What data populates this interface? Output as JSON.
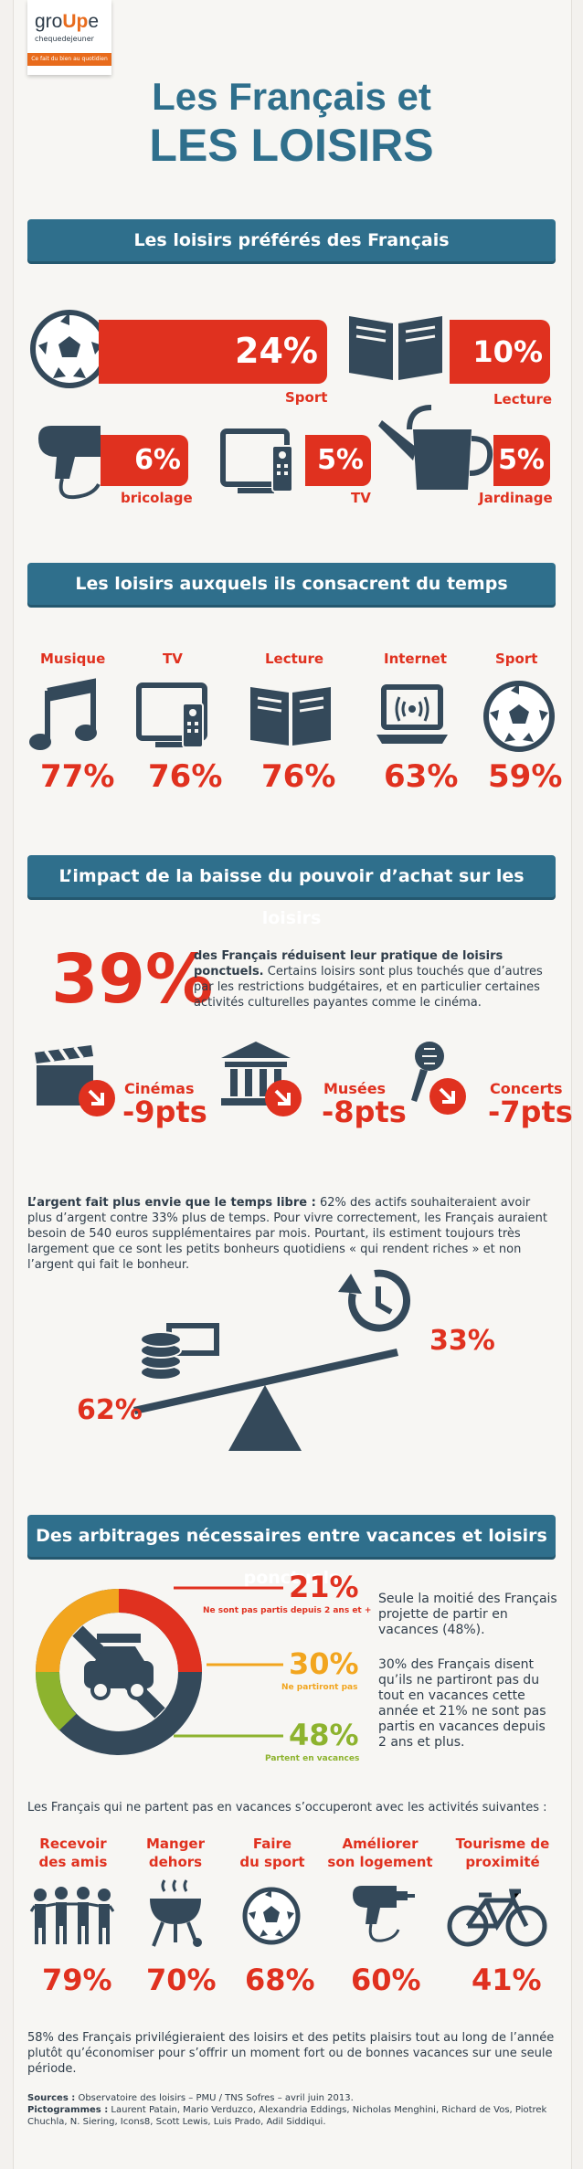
{
  "brand": {
    "name_a": "gro",
    "name_b": "Up",
    "name_c": "e",
    "sub": "chequedejeuner",
    "tagline": "Ce fait du bien au quotidien"
  },
  "title": {
    "line1": "Les Français et",
    "line2": "LES LOISIRS"
  },
  "sec1": {
    "heading": "Les loisirs préférés des Français",
    "items": [
      {
        "label": "Sport",
        "value": "24%",
        "icon": "soccer-ball-icon"
      },
      {
        "label": "Lecture",
        "value": "10%",
        "icon": "book-icon"
      },
      {
        "label": "bricolage",
        "value": "6%",
        "icon": "drill-icon"
      },
      {
        "label": "TV",
        "value": "5%",
        "icon": "tv-icon"
      },
      {
        "label": "Jardinage",
        "value": "5%",
        "icon": "watering-can-icon"
      }
    ]
  },
  "sec2": {
    "heading": "Les loisirs auxquels ils consacrent du temps",
    "items": [
      {
        "label": "Musique",
        "value": "77%",
        "icon": "music-note-icon"
      },
      {
        "label": "TV",
        "value": "76%",
        "icon": "tv-icon"
      },
      {
        "label": "Lecture",
        "value": "76%",
        "icon": "book-icon"
      },
      {
        "label": "Internet",
        "value": "63%",
        "icon": "laptop-icon"
      },
      {
        "label": "Sport",
        "value": "59%",
        "icon": "soccer-ball-icon"
      }
    ]
  },
  "sec3": {
    "heading": "L’impact de la baisse du pouvoir d’achat sur les loisirs",
    "big": "39%",
    "bold_text": "des Français réduisent leur pratique de loisirs ponctuels.",
    "text": "Certains loisirs sont plus touchés que d’autres par les restrictions budgétaires, et en particulier certaines activités culturelles payantes comme le cinéma.",
    "impacts": [
      {
        "label": "Cinémas",
        "value": "-9pts",
        "icon": "clapperboard-icon"
      },
      {
        "label": "Musées",
        "value": "-8pts",
        "icon": "museum-icon"
      },
      {
        "label": "Concerts",
        "value": "-7pts",
        "icon": "microphone-icon"
      }
    ],
    "money_bold": "L’argent fait plus envie que le temps libre :",
    "money_text": " 62% des actifs souhaiteraient avoir plus d’argent contre 33% plus de temps. Pour vivre correctement, les Français auraient besoin de 540 euros supplémentaires par mois. Pourtant, ils estiment toujours très largement que ce sont les petits bonheurs quotidiens « qui rendent riches » et non l’argent qui fait le bonheur.",
    "left_value": "62%",
    "right_value": "33%"
  },
  "sec4": {
    "heading": "Des arbitrages nécessaires entre vacances et loisirs ponctuels",
    "stats": [
      {
        "value": "21%",
        "label": "Ne sont pas partis depuis 2 ans et +",
        "color": "#e0311f"
      },
      {
        "value": "30%",
        "label": "Ne partiront pas",
        "color": "#f2a51e"
      },
      {
        "value": "48%",
        "label": "Partent en vacances",
        "color": "#8db32e"
      }
    ],
    "side_text1": "Seule la moitié des Français projette de partir en vacances (48%).",
    "side_text2": "30% des Français disent qu’ils ne partiront pas du tout en vacances cette année et 21% ne sont pas partis en vacances depuis 2 ans et plus.",
    "intro": "Les Français qui ne partent pas en vacances s’occuperont avec les activités suivantes :",
    "activities": [
      {
        "l1": "Recevoir",
        "l2": "des amis",
        "value": "79%",
        "icon": "people-icon"
      },
      {
        "l1": "Manger",
        "l2": "dehors",
        "value": "70%",
        "icon": "barbecue-icon"
      },
      {
        "l1": "Faire",
        "l2": "du sport",
        "value": "68%",
        "icon": "soccer-ball-icon"
      },
      {
        "l1": "Améliorer",
        "l2": "son logement",
        "value": "60%",
        "icon": "drill-icon"
      },
      {
        "l1": "Tourisme de",
        "l2": "proximité",
        "value": "41%",
        "icon": "bicycle-icon"
      }
    ],
    "conclusion": "58% des Français privilégieraient des loisirs et des petits plaisirs tout au long de l’année plutôt qu’économiser pour s’offrir un moment fort ou de bonnes vacances sur une seule période."
  },
  "footer": {
    "sources_label": "Sources :",
    "sources": "Observatoire des loisirs – PMU / TNS Sofres – avril juin 2013.",
    "picto_label": "Pictogrammes :",
    "picto": "Laurent Patain, Mario Verduzco, Alexandria Eddings, Nicholas Menghini, Richard de Vos, Piotrek Chuchla, N. Siering, Icons8, Scott Lewis, Luis Prado, Adil Siddiqui."
  }
}
